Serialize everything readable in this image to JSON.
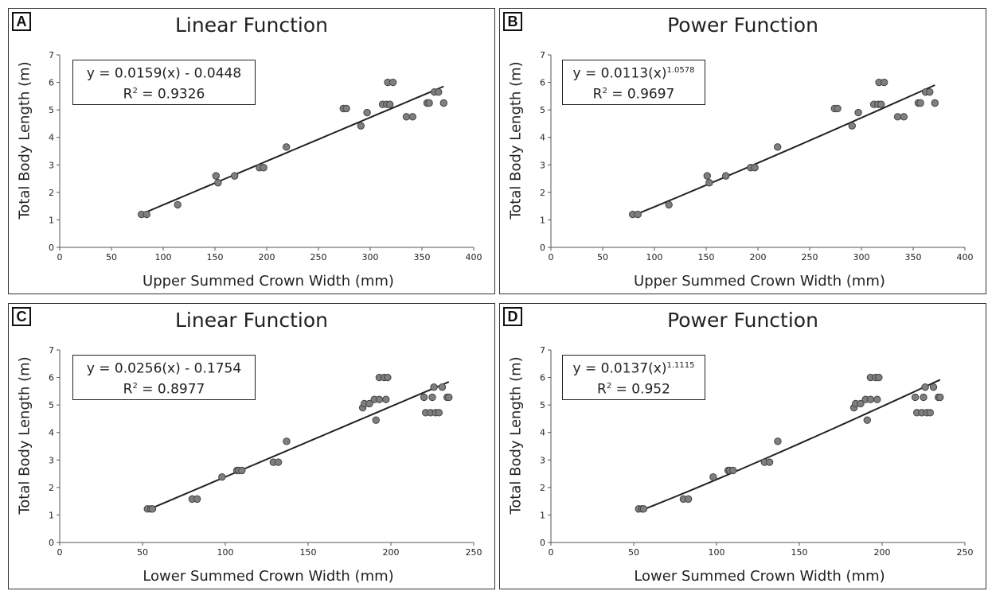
{
  "chart_data": [
    {
      "type": "scatter",
      "panel_label": "A",
      "title": "Linear Function",
      "equation_prefix": "y = 0.0159(x) - 0.0448",
      "equation_exp": "",
      "r2_text": "= 0.9326",
      "xlabel": "Upper Summed Crown Width (mm)",
      "ylabel": "Total Body Length (m)",
      "xlim": [
        0,
        400
      ],
      "ylim": [
        0,
        7
      ],
      "xticks": [
        0,
        50,
        100,
        150,
        200,
        250,
        300,
        350,
        400
      ],
      "yticks": [
        0,
        1,
        2,
        3,
        4,
        5,
        6,
        7
      ],
      "fit": {
        "model": "linear",
        "a": 0.0159,
        "b": -0.0448,
        "x_range": [
          78,
          371
        ]
      },
      "points": [
        [
          79,
          1.2
        ],
        [
          84,
          1.2
        ],
        [
          114,
          1.55
        ],
        [
          151,
          2.6
        ],
        [
          153,
          2.35
        ],
        [
          169,
          2.6
        ],
        [
          193,
          2.9
        ],
        [
          197,
          2.9
        ],
        [
          219,
          3.65
        ],
        [
          274,
          5.05
        ],
        [
          277,
          5.05
        ],
        [
          291,
          4.42
        ],
        [
          297,
          4.9
        ],
        [
          312,
          5.2
        ],
        [
          316,
          5.2
        ],
        [
          317,
          6.0
        ],
        [
          319,
          5.2
        ],
        [
          322,
          6.0
        ],
        [
          335,
          4.75
        ],
        [
          341,
          4.75
        ],
        [
          355,
          5.25
        ],
        [
          357,
          5.25
        ],
        [
          362,
          5.65
        ],
        [
          366,
          5.65
        ],
        [
          371,
          5.25
        ]
      ]
    },
    {
      "type": "scatter",
      "panel_label": "B",
      "title": "Power Function",
      "equation_prefix": "y = 0.0113(x)",
      "equation_exp": "1.0578",
      "r2_text": "= 0.9697",
      "xlabel": "Upper Summed Crown Width (mm)",
      "ylabel": "Total Body Length (m)",
      "xlim": [
        0,
        400
      ],
      "ylim": [
        0,
        7
      ],
      "xticks": [
        0,
        50,
        100,
        150,
        200,
        250,
        300,
        350,
        400
      ],
      "yticks": [
        0,
        1,
        2,
        3,
        4,
        5,
        6,
        7
      ],
      "fit": {
        "model": "power",
        "a": 0.0113,
        "b": 1.0578,
        "x_range": [
          78,
          371
        ]
      },
      "points": [
        [
          79,
          1.2
        ],
        [
          84,
          1.2
        ],
        [
          114,
          1.55
        ],
        [
          151,
          2.6
        ],
        [
          153,
          2.35
        ],
        [
          169,
          2.6
        ],
        [
          193,
          2.9
        ],
        [
          197,
          2.9
        ],
        [
          219,
          3.65
        ],
        [
          274,
          5.05
        ],
        [
          277,
          5.05
        ],
        [
          291,
          4.42
        ],
        [
          297,
          4.9
        ],
        [
          312,
          5.2
        ],
        [
          316,
          5.2
        ],
        [
          317,
          6.0
        ],
        [
          319,
          5.2
        ],
        [
          322,
          6.0
        ],
        [
          335,
          4.75
        ],
        [
          341,
          4.75
        ],
        [
          355,
          5.25
        ],
        [
          357,
          5.25
        ],
        [
          362,
          5.65
        ],
        [
          366,
          5.65
        ],
        [
          371,
          5.25
        ]
      ]
    },
    {
      "type": "scatter",
      "panel_label": "C",
      "title": "Linear Function",
      "equation_prefix": "y = 0.0256(x) - 0.1754",
      "equation_exp": "",
      "r2_text": "= 0.8977",
      "xlabel": "Lower Summed Crown Width (mm)",
      "ylabel": "Total Body Length (m)",
      "xlim": [
        0,
        250
      ],
      "ylim": [
        0,
        7
      ],
      "xticks": [
        0,
        50,
        100,
        150,
        200,
        250
      ],
      "yticks": [
        0,
        1,
        2,
        3,
        4,
        5,
        6,
        7
      ],
      "fit": {
        "model": "linear",
        "a": 0.0256,
        "b": -0.1754,
        "x_range": [
          52,
          235
        ]
      },
      "points": [
        [
          53,
          1.22
        ],
        [
          55,
          1.22
        ],
        [
          56,
          1.22
        ],
        [
          80,
          1.58
        ],
        [
          83,
          1.58
        ],
        [
          98,
          2.38
        ],
        [
          107,
          2.62
        ],
        [
          108,
          2.62
        ],
        [
          110,
          2.62
        ],
        [
          129,
          2.92
        ],
        [
          132,
          2.92
        ],
        [
          137,
          3.68
        ],
        [
          183,
          4.9
        ],
        [
          184,
          5.05
        ],
        [
          187,
          5.05
        ],
        [
          190,
          5.2
        ],
        [
          191,
          4.45
        ],
        [
          193,
          5.2
        ],
        [
          193,
          6.0
        ],
        [
          196,
          6.0
        ],
        [
          197,
          5.2
        ],
        [
          198,
          6.0
        ],
        [
          220,
          5.28
        ],
        [
          221,
          4.72
        ],
        [
          224,
          4.72
        ],
        [
          225,
          5.28
        ],
        [
          226,
          5.65
        ],
        [
          227,
          4.72
        ],
        [
          229,
          4.72
        ],
        [
          231,
          5.65
        ],
        [
          234,
          5.28
        ],
        [
          235,
          5.28
        ]
      ]
    },
    {
      "type": "scatter",
      "panel_label": "D",
      "title": "Power Function",
      "equation_prefix": "y = 0.0137(x)",
      "equation_exp": "1.1115",
      "r2_text": "= 0.952",
      "xlabel": "Lower Summed Crown Width (mm)",
      "ylabel": "Total Body Length (m)",
      "xlim": [
        0,
        250
      ],
      "ylim": [
        0,
        7
      ],
      "xticks": [
        0,
        50,
        100,
        150,
        200,
        250
      ],
      "yticks": [
        0,
        1,
        2,
        3,
        4,
        5,
        6,
        7
      ],
      "fit": {
        "model": "power",
        "a": 0.0137,
        "b": 1.1115,
        "x_range": [
          52,
          235
        ]
      },
      "points": [
        [
          53,
          1.22
        ],
        [
          55,
          1.22
        ],
        [
          56,
          1.22
        ],
        [
          80,
          1.58
        ],
        [
          83,
          1.58
        ],
        [
          98,
          2.38
        ],
        [
          107,
          2.62
        ],
        [
          108,
          2.62
        ],
        [
          110,
          2.62
        ],
        [
          129,
          2.92
        ],
        [
          132,
          2.92
        ],
        [
          137,
          3.68
        ],
        [
          183,
          4.9
        ],
        [
          184,
          5.05
        ],
        [
          187,
          5.05
        ],
        [
          190,
          5.2
        ],
        [
          191,
          4.45
        ],
        [
          193,
          5.2
        ],
        [
          193,
          6.0
        ],
        [
          196,
          6.0
        ],
        [
          197,
          5.2
        ],
        [
          198,
          6.0
        ],
        [
          220,
          5.28
        ],
        [
          221,
          4.72
        ],
        [
          224,
          4.72
        ],
        [
          225,
          5.28
        ],
        [
          226,
          5.65
        ],
        [
          227,
          4.72
        ],
        [
          229,
          4.72
        ],
        [
          231,
          5.65
        ],
        [
          234,
          5.28
        ],
        [
          235,
          5.28
        ]
      ]
    }
  ]
}
